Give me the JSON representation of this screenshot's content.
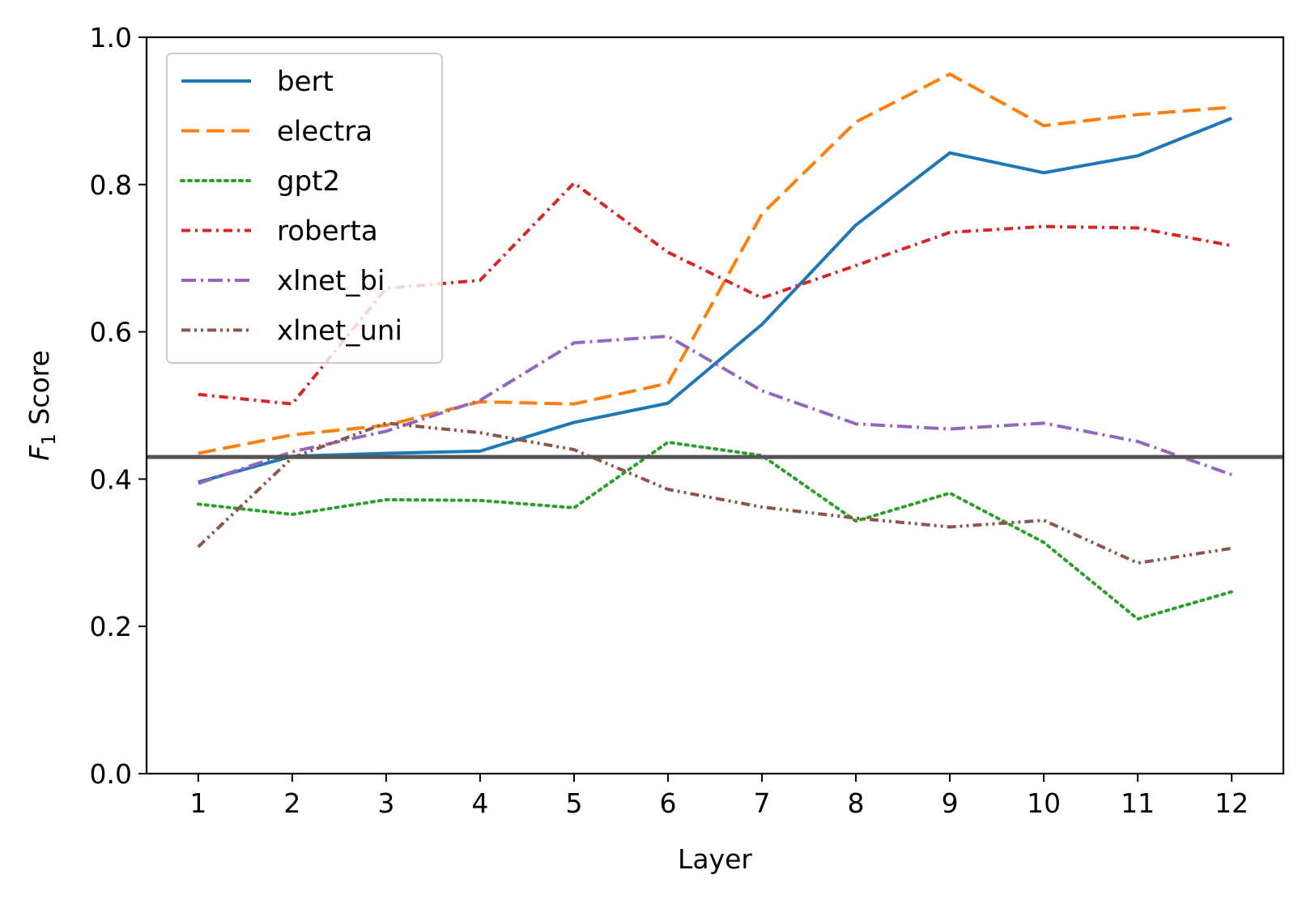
{
  "chart_data": {
    "type": "line",
    "xlabel": "Layer",
    "ylabel": {
      "symbol": "F",
      "subscript": "1",
      "text": "Score"
    },
    "x": [
      1,
      2,
      3,
      4,
      5,
      6,
      7,
      8,
      9,
      10,
      11,
      12
    ],
    "xticks": [
      "1",
      "2",
      "3",
      "4",
      "5",
      "6",
      "7",
      "8",
      "9",
      "10",
      "11",
      "12"
    ],
    "xlim": [
      0.45,
      12.55
    ],
    "ylim": [
      0.0,
      1.0
    ],
    "yticks": [
      "0.0",
      "0.2",
      "0.4",
      "0.6",
      "0.8",
      "1.0"
    ],
    "grid": false,
    "legend_position": "top-left",
    "baseline": {
      "value": 0.43,
      "color": "#555555"
    },
    "series": [
      {
        "name": "bert",
        "color": "#1f77b4",
        "style": "solid",
        "values": [
          0.396,
          0.431,
          0.435,
          0.438,
          0.477,
          0.503,
          0.61,
          0.745,
          0.843,
          0.816,
          0.839,
          0.89
        ]
      },
      {
        "name": "electra",
        "color": "#ff7f0e",
        "style": "dashed",
        "values": [
          0.435,
          0.46,
          0.473,
          0.505,
          0.502,
          0.53,
          0.76,
          0.885,
          0.95,
          0.88,
          0.895,
          0.905
        ]
      },
      {
        "name": "gpt2",
        "color": "#2ca02c",
        "style": "dotted",
        "values": [
          0.366,
          0.352,
          0.372,
          0.371,
          0.361,
          0.45,
          0.432,
          0.343,
          0.381,
          0.314,
          0.21,
          0.247
        ]
      },
      {
        "name": "roberta",
        "color": "#d62728",
        "style": "dashdot",
        "values": [
          0.515,
          0.502,
          0.659,
          0.67,
          0.802,
          0.708,
          0.646,
          0.69,
          0.735,
          0.743,
          0.741,
          0.717
        ]
      },
      {
        "name": "xlnet_bi",
        "color": "#9467bd",
        "style": "longdashdot",
        "values": [
          0.394,
          0.437,
          0.465,
          0.507,
          0.585,
          0.594,
          0.52,
          0.475,
          0.468,
          0.476,
          0.451,
          0.406
        ]
      },
      {
        "name": "xlnet_uni",
        "color": "#8c564b",
        "style": "dashdotdot",
        "values": [
          0.308,
          0.429,
          0.476,
          0.463,
          0.44,
          0.386,
          0.362,
          0.347,
          0.335,
          0.344,
          0.286,
          0.306
        ]
      }
    ]
  }
}
